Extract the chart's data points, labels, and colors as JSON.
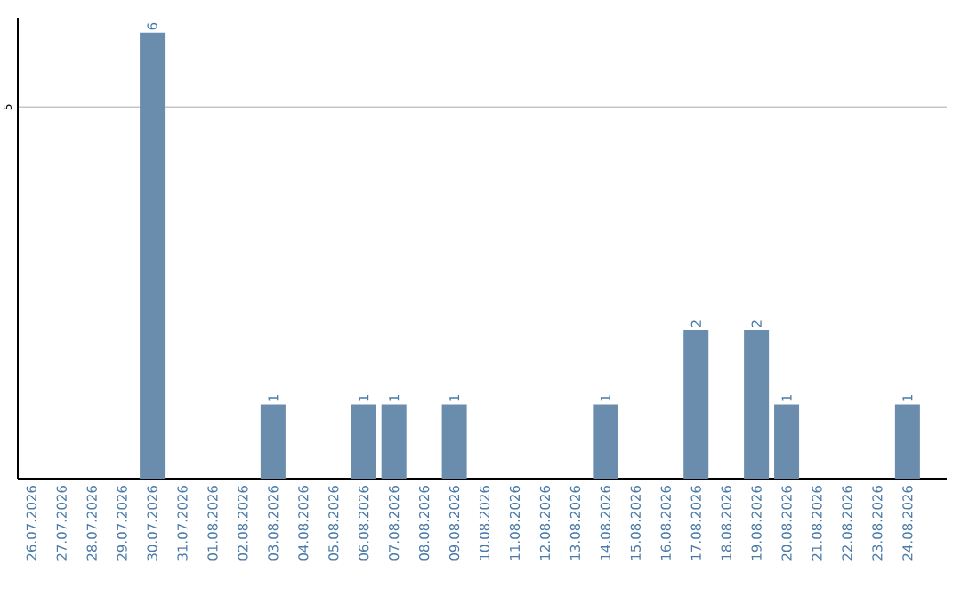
{
  "chart_data": {
    "type": "bar",
    "categories": [
      "26.07.2026",
      "27.07.2026",
      "28.07.2026",
      "29.07.2026",
      "30.07.2026",
      "31.07.2026",
      "01.08.2026",
      "02.08.2026",
      "03.08.2026",
      "04.08.2026",
      "05.08.2026",
      "06.08.2026",
      "07.08.2026",
      "08.08.2026",
      "09.08.2026",
      "10.08.2026",
      "11.08.2026",
      "12.08.2026",
      "13.08.2026",
      "14.08.2026",
      "15.08.2026",
      "16.08.2026",
      "17.08.2026",
      "18.08.2026",
      "19.08.2026",
      "20.08.2026",
      "21.08.2026",
      "22.08.2026",
      "23.08.2026",
      "24.08.2026"
    ],
    "values": [
      0,
      0,
      0,
      0,
      6,
      0,
      0,
      0,
      1,
      0,
      0,
      1,
      1,
      0,
      1,
      0,
      0,
      0,
      0,
      1,
      0,
      0,
      2,
      0,
      2,
      1,
      0,
      0,
      0,
      1
    ],
    "value_labels": [
      null,
      null,
      null,
      null,
      "6",
      null,
      null,
      null,
      "1",
      null,
      null,
      "1",
      "1",
      null,
      "1",
      null,
      null,
      null,
      null,
      "1",
      null,
      null,
      "2",
      null,
      "2",
      "1",
      null,
      null,
      null,
      "1"
    ],
    "color": "#6a8cad",
    "ylim": [
      0,
      6.2
    ],
    "yticks": [
      5
    ],
    "grid": "y"
  }
}
